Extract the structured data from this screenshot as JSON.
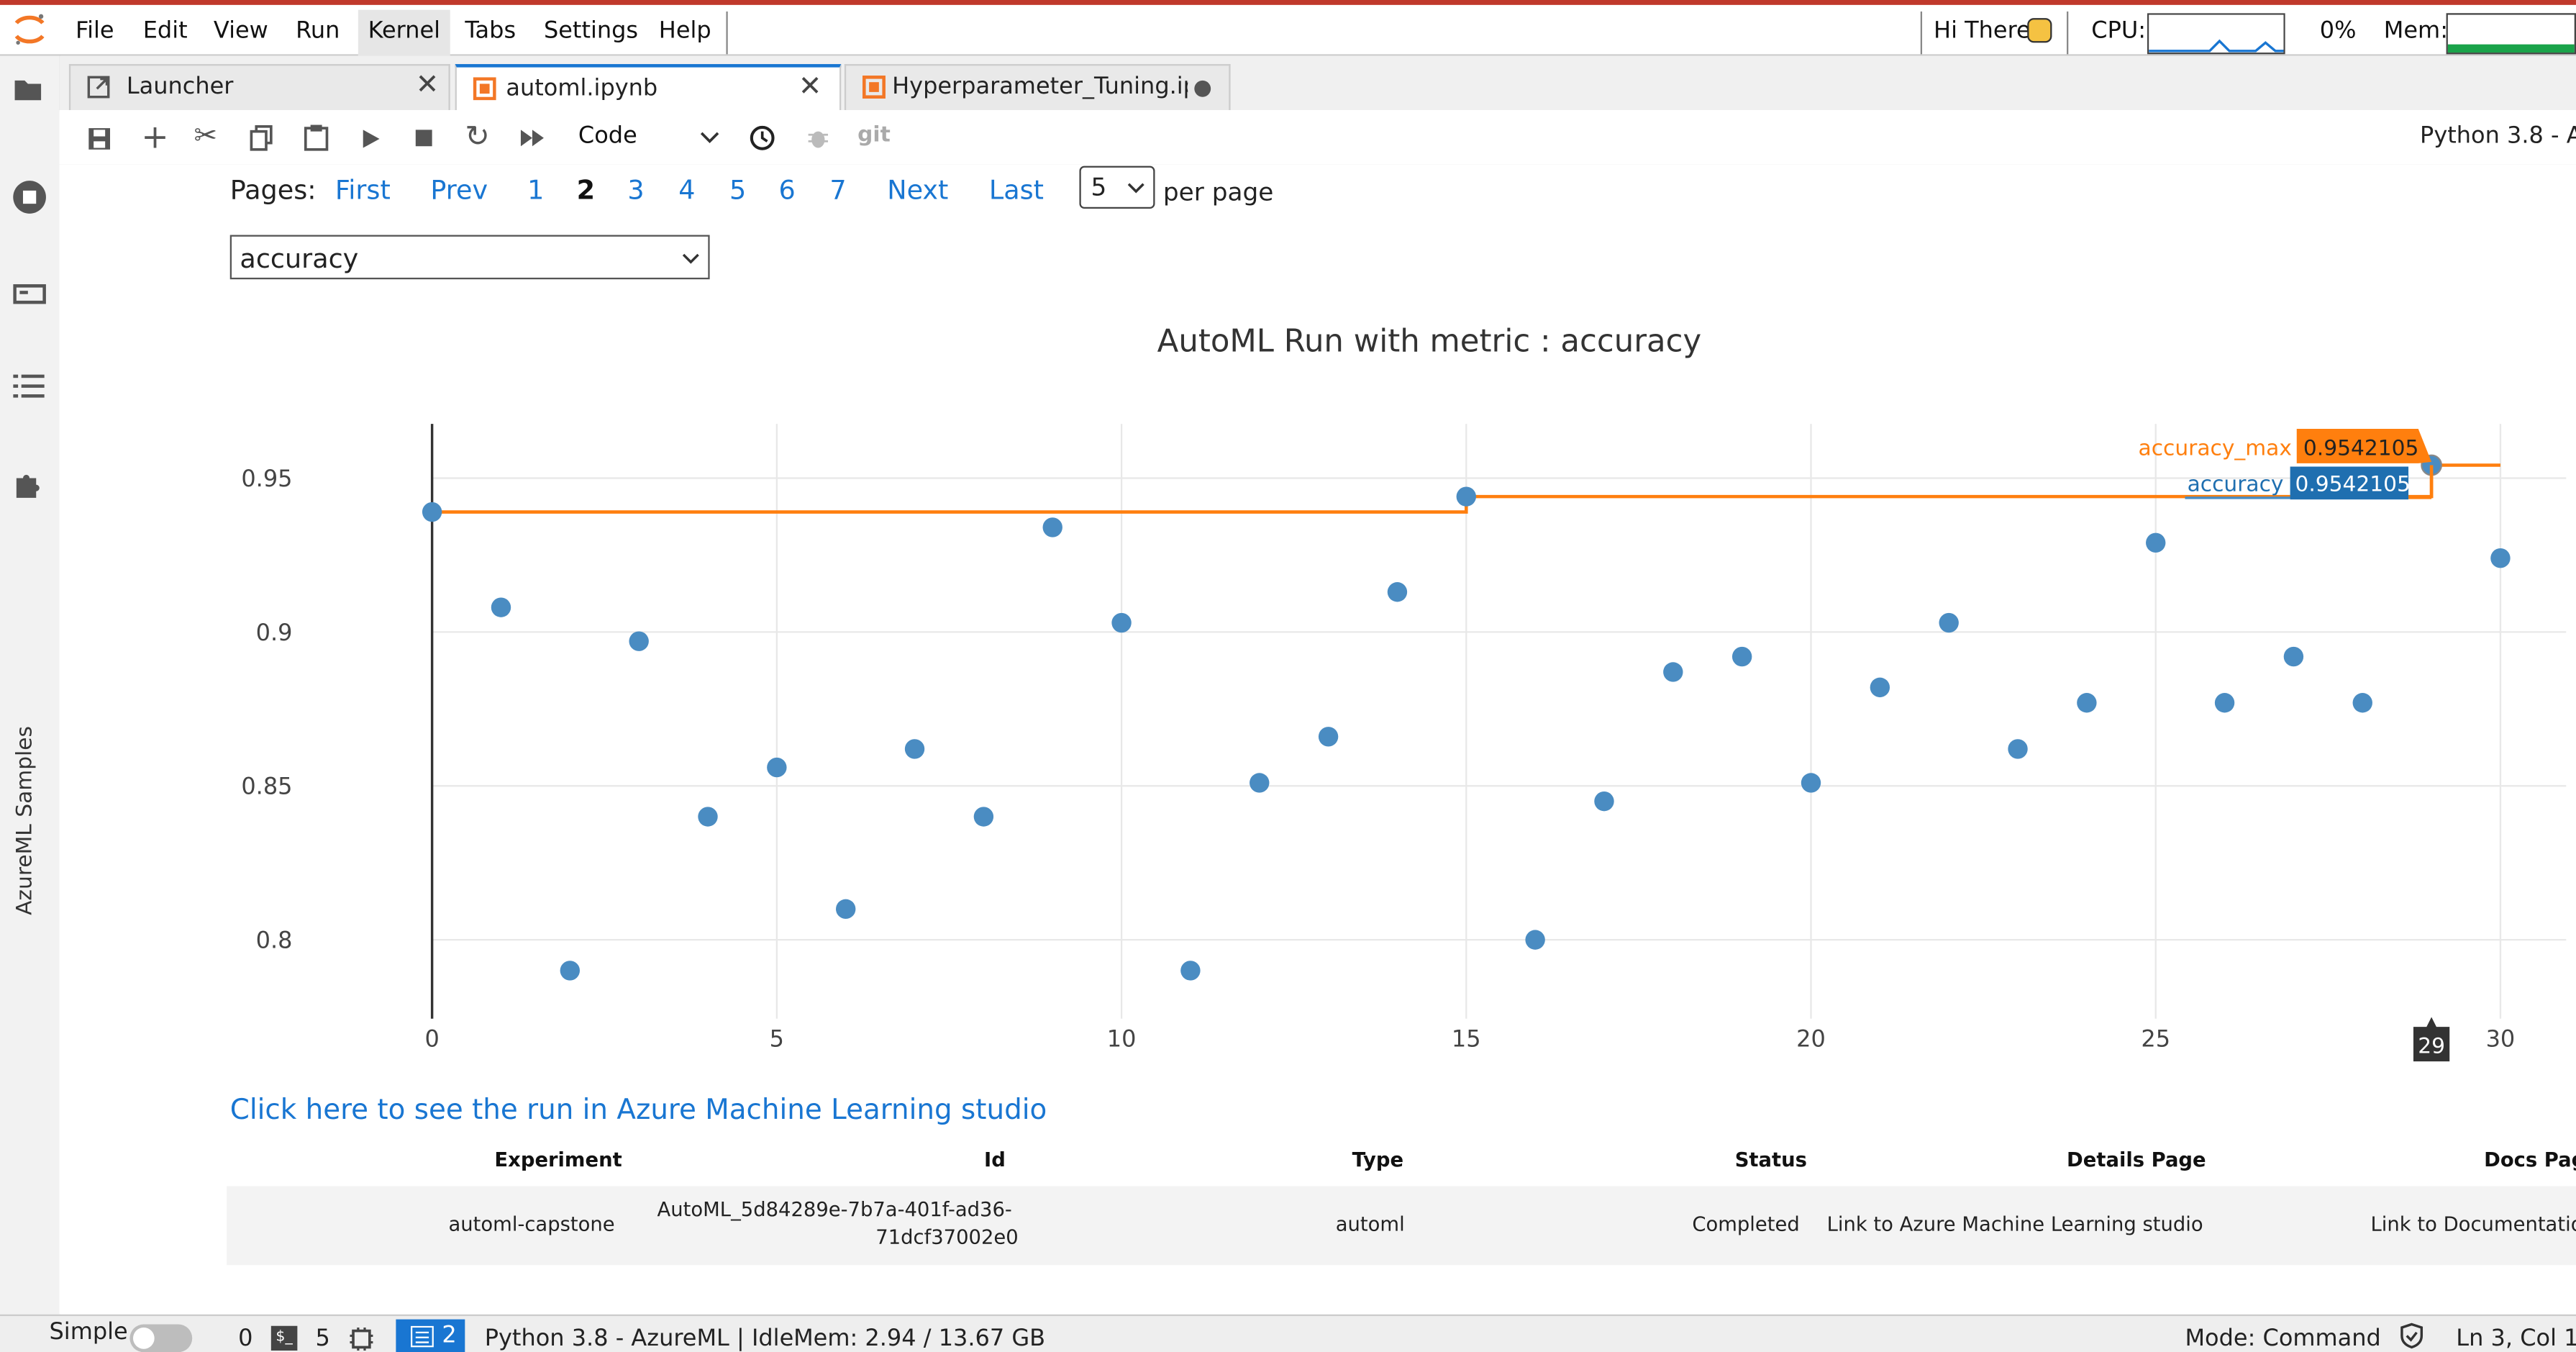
{
  "menu": {
    "file": "File",
    "edit": "Edit",
    "view": "View",
    "run": "Run",
    "kernel": "Kernel",
    "tabs": "Tabs",
    "settings": "Settings",
    "help": "Help"
  },
  "top_right": {
    "greeting": "Hi There",
    "cpu_label": "CPU:",
    "cpu_value": "0%",
    "mem_label": "Mem:"
  },
  "tabs": [
    {
      "label": "Launcher"
    },
    {
      "label": "automl.ipynb"
    },
    {
      "label": "Hyperparameter_Tuning.ipyr"
    }
  ],
  "toolbar": {
    "cell_type": "Code",
    "git": "git",
    "kernel_name": "Python 3.8 - Az"
  },
  "sidebar": {
    "vertical_label": "AzureML Samples"
  },
  "pagination": {
    "label": "Pages:",
    "first": "First",
    "prev": "Prev",
    "pages": [
      "1",
      "2",
      "3",
      "4",
      "5",
      "6",
      "7"
    ],
    "current": "2",
    "next": "Next",
    "last": "Last",
    "per_page_value": "5",
    "per_page_label": "per page"
  },
  "metric_select": {
    "value": "accuracy"
  },
  "chart_data": {
    "type": "scatter",
    "title": "AutoML Run with metric : accuracy",
    "xlim": [
      0,
      30
    ],
    "ylim": [
      0.78,
      0.96
    ],
    "x_ticks": [
      "0",
      "5",
      "10",
      "15",
      "20",
      "25",
      "30"
    ],
    "y_ticks": [
      "0.8",
      "0.85",
      "0.9",
      "0.95"
    ],
    "grid": true,
    "series": [
      {
        "name": "accuracy",
        "color": "#4a8cc2",
        "x": [
          0,
          1,
          2,
          3,
          4,
          5,
          6,
          7,
          8,
          9,
          10,
          11,
          12,
          13,
          14,
          15,
          16,
          17,
          18,
          19,
          20,
          21,
          22,
          23,
          24,
          25,
          26,
          27,
          28,
          29,
          30
        ],
        "y": [
          0.939,
          0.908,
          0.79,
          0.897,
          0.84,
          0.856,
          0.81,
          0.862,
          0.84,
          0.934,
          0.903,
          0.79,
          0.851,
          0.866,
          0.913,
          0.944,
          0.8,
          0.845,
          0.887,
          0.892,
          0.851,
          0.882,
          0.903,
          0.862,
          0.877,
          0.929,
          0.877,
          0.892,
          0.877,
          0.9542105,
          0.924
        ]
      },
      {
        "name": "accuracy_max",
        "color": "#ff7f0e",
        "step_x": [
          0,
          15,
          29,
          30
        ],
        "step_y": [
          0.939,
          0.944,
          0.9542105,
          0.9542105
        ]
      }
    ],
    "hover": {
      "x_label": "29",
      "accuracy_max_label": "accuracy_max",
      "accuracy_max_value": "0.9542105",
      "accuracy_label": "accuracy",
      "accuracy_value": "0.9542105"
    }
  },
  "studio_link": "Click here to see the run in Azure Machine Learning studio",
  "run_table": {
    "headers": [
      "Experiment",
      "Id",
      "Type",
      "Status",
      "Details Page",
      "Docs Pag"
    ],
    "row": {
      "experiment": "automl-capstone",
      "id_line1": "AutoML_5d84289e-7b7a-401f-ad36-",
      "id_line2": "71dcf37002e0",
      "type": "automl",
      "status": "Completed",
      "details": "Link to Azure Machine Learning studio",
      "docs": "Link to Documentatio"
    }
  },
  "statusbar": {
    "simple": "Simple",
    "count0": "0",
    "terminals": "5",
    "kernel_badge": "2",
    "kernel_status": "Python 3.8 - AzureML | Idle",
    "mem": "Mem: 2.94 / 13.67 GB",
    "mode": "Mode: Command",
    "position": "Ln 3, Col 1"
  },
  "colors": {
    "accent": "#1976d2",
    "max_line": "#ff7f0e",
    "points": "#4a8cc2",
    "jupyter_orange": "#f37726"
  }
}
